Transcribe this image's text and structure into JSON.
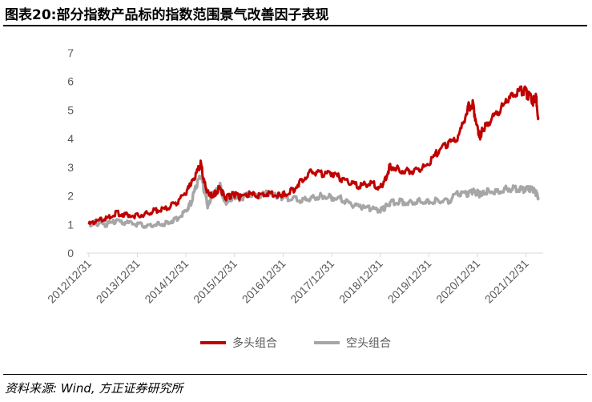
{
  "title": "图表20:部分指数产品标的指数范围景气改善因子表现",
  "source": "资料来源: Wind, 方正证券研究所",
  "chart_data": {
    "type": "line",
    "title": "部分指数产品标的指数范围景气改善因子表现",
    "ylim": [
      0,
      7
    ],
    "yticks": [
      0,
      1,
      2,
      3,
      4,
      5,
      6,
      7
    ],
    "ytick_labels": [
      "0",
      "1",
      "2",
      "3",
      "4",
      "5",
      "6",
      "7"
    ],
    "xlim": [
      2012.95,
      2022.35
    ],
    "xticks": [
      2012.997,
      2013.997,
      2014.997,
      2015.997,
      2016.997,
      2017.997,
      2018.997,
      2019.997,
      2020.997,
      2021.997
    ],
    "xtick_labels": [
      "2012/12/31",
      "2013/12/31",
      "2014/12/31",
      "2015/12/31",
      "2016/12/31",
      "2017/12/31",
      "2018/12/31",
      "2019/12/31",
      "2020/12/31",
      "2021/12/31"
    ],
    "legend_position": "bottom-center",
    "series": [
      {
        "name": "多头组合",
        "color": "#C00000",
        "x": [
          2013.0,
          2013.15,
          2013.35,
          2013.55,
          2013.75,
          2014.0,
          2014.2,
          2014.4,
          2014.6,
          2014.8,
          2015.0,
          2015.1,
          2015.2,
          2015.3,
          2015.37,
          2015.45,
          2015.52,
          2015.6,
          2015.7,
          2015.8,
          2015.9,
          2016.0,
          2016.1,
          2016.3,
          2016.5,
          2016.7,
          2016.9,
          2017.0,
          2017.2,
          2017.4,
          2017.6,
          2017.8,
          2018.0,
          2018.2,
          2018.4,
          2018.6,
          2018.8,
          2019.0,
          2019.1,
          2019.2,
          2019.4,
          2019.6,
          2019.8,
          2020.0,
          2020.2,
          2020.4,
          2020.6,
          2020.8,
          2020.9,
          2021.0,
          2021.05,
          2021.1,
          2021.2,
          2021.4,
          2021.6,
          2021.8,
          2021.95,
          2022.05,
          2022.15,
          2022.2,
          2022.25
        ],
        "values": [
          1.0,
          1.1,
          1.2,
          1.4,
          1.35,
          1.3,
          1.4,
          1.5,
          1.55,
          1.75,
          2.1,
          2.4,
          2.7,
          3.15,
          2.5,
          2.1,
          2.0,
          2.1,
          2.3,
          1.9,
          2.0,
          2.05,
          1.95,
          2.05,
          2.0,
          2.1,
          2.05,
          2.05,
          2.2,
          2.6,
          2.85,
          2.75,
          2.8,
          2.6,
          2.4,
          2.35,
          2.45,
          2.3,
          2.6,
          3.05,
          2.9,
          2.85,
          2.9,
          3.1,
          3.6,
          3.8,
          4.0,
          5.1,
          5.2,
          4.4,
          4.1,
          4.3,
          4.5,
          4.9,
          5.3,
          5.55,
          5.7,
          5.5,
          5.3,
          5.5,
          4.75
        ]
      },
      {
        "name": "空头组合",
        "color": "#A6A6A6",
        "x": [
          2013.0,
          2013.15,
          2013.35,
          2013.55,
          2013.75,
          2014.0,
          2014.2,
          2014.4,
          2014.6,
          2014.8,
          2015.0,
          2015.1,
          2015.2,
          2015.3,
          2015.37,
          2015.45,
          2015.52,
          2015.6,
          2015.7,
          2015.8,
          2015.9,
          2016.0,
          2016.1,
          2016.3,
          2016.5,
          2016.7,
          2016.9,
          2017.0,
          2017.2,
          2017.4,
          2017.6,
          2017.8,
          2018.0,
          2018.2,
          2018.4,
          2018.6,
          2018.8,
          2019.0,
          2019.1,
          2019.2,
          2019.4,
          2019.6,
          2019.8,
          2020.0,
          2020.2,
          2020.4,
          2020.6,
          2020.8,
          2020.9,
          2021.0,
          2021.05,
          2021.1,
          2021.2,
          2021.4,
          2021.6,
          2021.8,
          2021.95,
          2022.05,
          2022.15,
          2022.2,
          2022.25
        ],
        "values": [
          1.0,
          1.05,
          1.0,
          1.1,
          1.05,
          1.0,
          0.95,
          1.0,
          1.05,
          1.2,
          1.5,
          1.75,
          2.3,
          2.75,
          2.2,
          1.6,
          2.0,
          2.1,
          2.35,
          1.75,
          1.9,
          2.0,
          1.9,
          2.05,
          2.0,
          2.1,
          2.0,
          1.95,
          1.9,
          1.85,
          1.95,
          2.0,
          1.95,
          1.9,
          1.7,
          1.6,
          1.55,
          1.5,
          1.6,
          1.75,
          1.8,
          1.75,
          1.85,
          1.8,
          1.85,
          1.8,
          2.1,
          2.05,
          2.15,
          2.1,
          2.05,
          2.1,
          2.15,
          2.15,
          2.25,
          2.25,
          2.2,
          2.25,
          2.2,
          2.1,
          1.95
        ]
      }
    ]
  }
}
